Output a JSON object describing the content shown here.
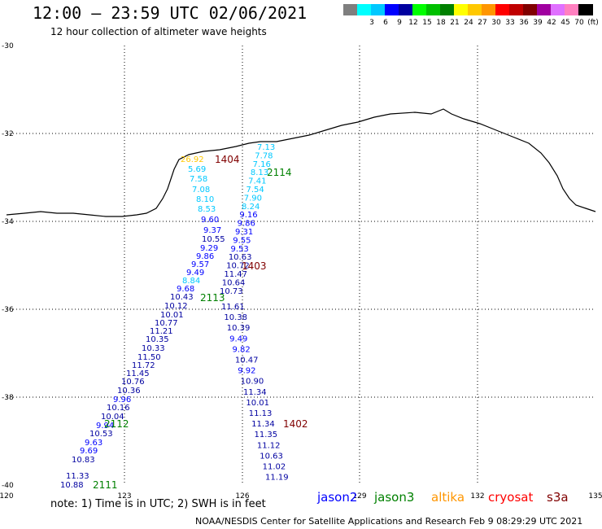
{
  "title": "12:00 — 23:59 UTC 02/06/2021",
  "subtitle": "12 hour collection of altimeter wave heights",
  "legend": {
    "swatches": [
      {
        "color": "#7f7f7f",
        "label": ""
      },
      {
        "color": "#00ffff",
        "label": "3"
      },
      {
        "color": "#00c8ff",
        "label": "6"
      },
      {
        "color": "#0000ff",
        "label": "9"
      },
      {
        "color": "#0000a0",
        "label": "12"
      },
      {
        "color": "#00ff00",
        "label": "15"
      },
      {
        "color": "#00c000",
        "label": "18"
      },
      {
        "color": "#008000",
        "label": "21"
      },
      {
        "color": "#ffff00",
        "label": "24"
      },
      {
        "color": "#ffc800",
        "label": "27"
      },
      {
        "color": "#ff9600",
        "label": "30"
      },
      {
        "color": "#ff0000",
        "label": "33"
      },
      {
        "color": "#c00000",
        "label": "36"
      },
      {
        "color": "#800000",
        "label": "39"
      },
      {
        "color": "#a000a0",
        "label": "42"
      },
      {
        "color": "#e070ff",
        "label": "45"
      },
      {
        "color": "#ff80c0",
        "label": "70"
      },
      {
        "color": "#000000",
        "label": "(ft)"
      }
    ]
  },
  "axes": {
    "lon_ticks": [
      "120",
      "123",
      "126",
      "129",
      "132",
      "135"
    ],
    "lat_ticks": [
      "-30",
      "-32",
      "-34",
      "-36",
      "-38",
      "-40"
    ]
  },
  "tracks": [
    {
      "id": "1404",
      "color": "#800000",
      "points": [
        {
          "v": "7.13",
          "c": "#00c8ff"
        },
        {
          "v": "7.78",
          "c": "#00c8ff"
        },
        {
          "v": "7.16",
          "c": "#00c8ff"
        },
        {
          "v": "8.13",
          "c": "#00c8ff"
        },
        {
          "v": "7.41",
          "c": "#00c8ff"
        },
        {
          "v": "7.54",
          "c": "#00c8ff"
        },
        {
          "v": "7.90",
          "c": "#00c8ff"
        },
        {
          "v": "8.24",
          "c": "#00c8ff"
        },
        {
          "v": "9.16",
          "c": "#0000ff"
        },
        {
          "v": "9.86",
          "c": "#0000ff"
        },
        {
          "v": "9.31",
          "c": "#0000ff"
        },
        {
          "v": "9.55",
          "c": "#0000ff"
        },
        {
          "v": "9.53",
          "c": "#0000ff"
        },
        {
          "v": "10.63",
          "c": "#0000a0"
        },
        {
          "v": "10.72",
          "c": "#0000a0"
        },
        {
          "v": "11.47",
          "c": "#0000a0"
        },
        {
          "v": "10.64",
          "c": "#0000a0"
        },
        {
          "v": "10.73",
          "c": "#0000a0"
        }
      ]
    },
    {
      "id": "2114",
      "color": "#008000"
    },
    {
      "id": "1403",
      "color": "#800000",
      "points": [
        {
          "v": "26.92",
          "c": "#ffc800"
        },
        {
          "v": "5.69",
          "c": "#00c8ff"
        },
        {
          "v": "7.58",
          "c": "#00c8ff"
        },
        {
          "v": "7.08",
          "c": "#00c8ff"
        },
        {
          "v": "8.10",
          "c": "#00c8ff"
        },
        {
          "v": "8.53",
          "c": "#00c8ff"
        },
        {
          "v": "9.60",
          "c": "#0000ff"
        },
        {
          "v": "9.37",
          "c": "#0000ff"
        },
        {
          "v": "10.55",
          "c": "#0000a0"
        },
        {
          "v": "9.29",
          "c": "#0000ff"
        },
        {
          "v": "9.86",
          "c": "#0000ff"
        },
        {
          "v": "9.57",
          "c": "#0000ff"
        },
        {
          "v": "9.49",
          "c": "#0000ff"
        },
        {
          "v": "8.84",
          "c": "#00c8ff"
        },
        {
          "v": "9.68",
          "c": "#0000ff"
        },
        {
          "v": "10.43",
          "c": "#0000a0"
        },
        {
          "v": "10.12",
          "c": "#0000a0"
        },
        {
          "v": "10.01",
          "c": "#0000a0"
        },
        {
          "v": "10.77",
          "c": "#0000a0"
        },
        {
          "v": "11.21",
          "c": "#0000a0"
        },
        {
          "v": "10.35",
          "c": "#0000a0"
        },
        {
          "v": "10.33",
          "c": "#0000a0"
        },
        {
          "v": "11.50",
          "c": "#0000a0"
        },
        {
          "v": "11.72",
          "c": "#0000a0"
        },
        {
          "v": "11.45",
          "c": "#0000a0"
        },
        {
          "v": "10.76",
          "c": "#0000a0"
        },
        {
          "v": "10.36",
          "c": "#0000a0"
        },
        {
          "v": "9.96",
          "c": "#0000ff"
        },
        {
          "v": "10.16",
          "c": "#0000a0"
        },
        {
          "v": "10.04",
          "c": "#0000a0"
        },
        {
          "v": "9.94",
          "c": "#0000ff"
        },
        {
          "v": "10.53",
          "c": "#0000a0"
        },
        {
          "v": "9.63",
          "c": "#0000ff"
        },
        {
          "v": "9.69",
          "c": "#0000ff"
        },
        {
          "v": "10.83",
          "c": "#0000a0"
        },
        {
          "v": "11.33",
          "c": "#0000a0"
        },
        {
          "v": "10.88",
          "c": "#0000a0"
        }
      ]
    },
    {
      "id": "2113",
      "color": "#008000"
    },
    {
      "id": "1402",
      "color": "#800000",
      "points": [
        {
          "v": "11.61",
          "c": "#0000a0"
        },
        {
          "v": "10.38",
          "c": "#0000a0"
        },
        {
          "v": "10.39",
          "c": "#0000a0"
        },
        {
          "v": "9.49",
          "c": "#0000ff"
        },
        {
          "v": "9.82",
          "c": "#0000ff"
        },
        {
          "v": "10.47",
          "c": "#0000a0"
        },
        {
          "v": "9.92",
          "c": "#0000ff"
        },
        {
          "v": "10.90",
          "c": "#0000a0"
        },
        {
          "v": "11.34",
          "c": "#0000a0"
        },
        {
          "v": "10.01",
          "c": "#0000a0"
        },
        {
          "v": "11.13",
          "c": "#0000a0"
        },
        {
          "v": "11.34",
          "c": "#0000a0"
        },
        {
          "v": "11.35",
          "c": "#0000a0"
        },
        {
          "v": "11.12",
          "c": "#0000a0"
        },
        {
          "v": "10.63",
          "c": "#0000a0"
        },
        {
          "v": "11.02",
          "c": "#0000a0"
        },
        {
          "v": "11.19",
          "c": "#0000a0"
        }
      ]
    },
    {
      "id": "2112",
      "color": "#008000"
    },
    {
      "id": "2111",
      "color": "#008000"
    }
  ],
  "note": "note:  1) Time is in UTC;  2) SWH is in feet",
  "satellites": [
    {
      "name": "jason2",
      "color": "#0000ff"
    },
    {
      "name": "jason3",
      "color": "#008000"
    },
    {
      "name": "altika",
      "color": "#ff9600"
    },
    {
      "name": "cryosat",
      "color": "#ff0000"
    },
    {
      "name": "s3a",
      "color": "#800000"
    }
  ],
  "credit": "NOAA/NESDIS Center for Satellite Applications and Research    Feb  9 08:29:29 UTC 2021"
}
